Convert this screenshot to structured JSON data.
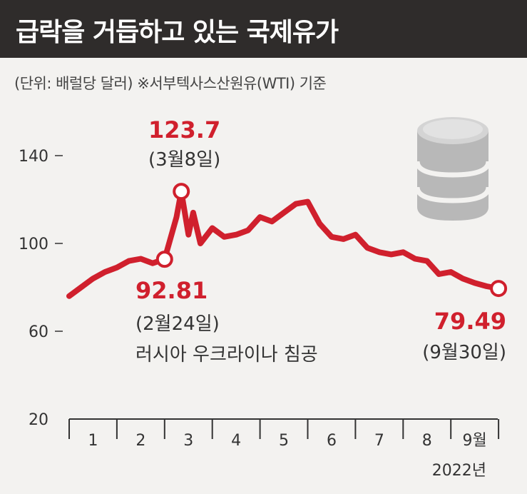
{
  "header": {
    "title": "급락을 거듭하고 있는 국제유가",
    "background": "#2f2c2b"
  },
  "subtitle": "(단위: 배럴당 달러)  ※서부텍사스산원유(WTI) 기준",
  "colors": {
    "line": "#d0202d",
    "text": "#333333",
    "barrel": "#b8b8b8",
    "background": "#f3f2f0"
  },
  "icon": "oil-barrel-icon",
  "chart_data": {
    "type": "line",
    "title": "급락을 거듭하고 있는 국제유가",
    "unit_note": "(단위: 배럴당 달러)  ※서부텍사스산원유(WTI) 기준",
    "y_ticks": [
      "20",
      "60",
      "100",
      "140"
    ],
    "ylim": [
      20,
      160
    ],
    "x_ticks": [
      "1",
      "2",
      "3",
      "4",
      "5",
      "6",
      "7",
      "8",
      "9월"
    ],
    "year_label": "2022년",
    "grid": false,
    "series": [
      {
        "x": [
          0.0,
          0.25,
          0.5,
          0.75,
          1.0,
          1.25,
          1.5,
          1.75,
          2.0,
          2.25,
          2.35,
          2.5,
          2.6,
          2.75,
          3.0,
          3.25,
          3.5,
          3.75,
          4.0,
          4.25,
          4.5,
          4.75,
          5.0,
          5.25,
          5.5,
          5.75,
          6.0,
          6.25,
          6.5,
          6.75,
          7.0,
          7.25,
          7.5,
          7.75,
          8.0,
          8.25,
          8.5,
          8.75,
          9.0
        ],
        "values": [
          76,
          80,
          84,
          87,
          89,
          92,
          93,
          91,
          92.81,
          112,
          123.7,
          104,
          114,
          100,
          107,
          103,
          104,
          106,
          112,
          110,
          114,
          118,
          119,
          109,
          103,
          102,
          104,
          98,
          96,
          95,
          96,
          93,
          92,
          86,
          87,
          84,
          82,
          80.5,
          79.49
        ]
      }
    ],
    "annotations": [
      {
        "value": "123.7",
        "date": "(3월8일)"
      },
      {
        "value": "92.81",
        "date": "(2월24일)",
        "note": "러시아 우크라이나 침공"
      },
      {
        "value": "79.49",
        "date": "(9월30일)"
      }
    ]
  }
}
